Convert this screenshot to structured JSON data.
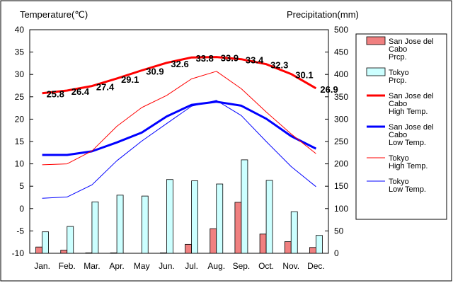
{
  "chart_data": {
    "type": "bar+line",
    "categories": [
      "Jan.",
      "Feb.",
      "Mar.",
      "Apr.",
      "May",
      "Jun.",
      "Jul.",
      "Aug.",
      "Sep.",
      "Oct.",
      "Nov.",
      "Dec."
    ],
    "y_left": {
      "label": "Temperature(℃)",
      "ylim": [
        -10,
        40
      ],
      "ticks": [
        -10,
        -5,
        0,
        5,
        10,
        15,
        20,
        25,
        30,
        35,
        40
      ]
    },
    "y_right": {
      "label": "Precipitation(mm)",
      "ylim": [
        0,
        500
      ],
      "ticks": [
        0,
        50,
        100,
        150,
        200,
        250,
        300,
        350,
        400,
        450,
        500
      ]
    },
    "grid": false,
    "legend_position": "right",
    "series": [
      {
        "name": "San Jose del Cabo Prcp.",
        "kind": "bar",
        "axis": "right",
        "color": "#f08080",
        "values": [
          14,
          7,
          1,
          1,
          0,
          1,
          20,
          55,
          114,
          43,
          26,
          13
        ]
      },
      {
        "name": "Tokyo Prcp.",
        "kind": "bar",
        "axis": "right",
        "color": "#ccffff",
        "values": [
          48,
          60,
          115,
          130,
          128,
          165,
          162,
          155,
          209,
          163,
          93,
          40
        ]
      },
      {
        "name": "San Jose del Cabo High Temp.",
        "kind": "line",
        "axis": "left",
        "color": "#ff0000",
        "width": "thick",
        "values": [
          25.8,
          26.4,
          27.4,
          29.1,
          30.9,
          32.6,
          33.8,
          33.9,
          33.4,
          32.3,
          30.1,
          26.9
        ],
        "data_labels": [
          "25.8",
          "26.4",
          "27.4",
          "29.1",
          "30.9",
          "32.6",
          "33.8",
          "33.9",
          "33.4",
          "32.3",
          "30.1",
          "26.9"
        ]
      },
      {
        "name": "San Jose del Cabo Low Temp.",
        "kind": "line",
        "axis": "left",
        "color": "#0000ff",
        "width": "thick",
        "values": [
          12.0,
          12.0,
          12.8,
          14.8,
          17.0,
          20.6,
          23.2,
          23.9,
          23.0,
          20.1,
          16.2,
          13.4
        ]
      },
      {
        "name": "Tokyo High Temp.",
        "kind": "line",
        "axis": "left",
        "color": "#ff0000",
        "width": "thin",
        "values": [
          9.8,
          10.0,
          12.9,
          18.4,
          22.6,
          25.3,
          29.0,
          30.7,
          26.8,
          21.6,
          16.7,
          12.3
        ]
      },
      {
        "name": "Tokyo Low Temp.",
        "kind": "line",
        "axis": "left",
        "color": "#0000ff",
        "width": "thin",
        "values": [
          2.3,
          2.6,
          5.3,
          10.7,
          15.1,
          19.0,
          22.9,
          24.2,
          20.8,
          15.0,
          9.4,
          4.9
        ]
      }
    ],
    "legend": [
      {
        "lines": [
          "San Jose del",
          "Cabo",
          "Prcp."
        ],
        "symbol": "bar",
        "color": "#f08080"
      },
      {
        "lines": [
          "Tokyo",
          "Prcp."
        ],
        "symbol": "bar",
        "color": "#ccffff"
      },
      {
        "lines": [
          "San Jose del",
          "Cabo",
          "High Temp."
        ],
        "symbol": "thick-line",
        "color": "#ff0000"
      },
      {
        "lines": [
          "San Jose del",
          "Cabo",
          "Low Temp."
        ],
        "symbol": "thick-line",
        "color": "#0000ff"
      },
      {
        "lines": [
          "Tokyo",
          "High Temp."
        ],
        "symbol": "thin-line",
        "color": "#ff0000"
      },
      {
        "lines": [
          "Tokyo",
          "Low Temp."
        ],
        "symbol": "thin-line",
        "color": "#0000ff"
      }
    ]
  }
}
